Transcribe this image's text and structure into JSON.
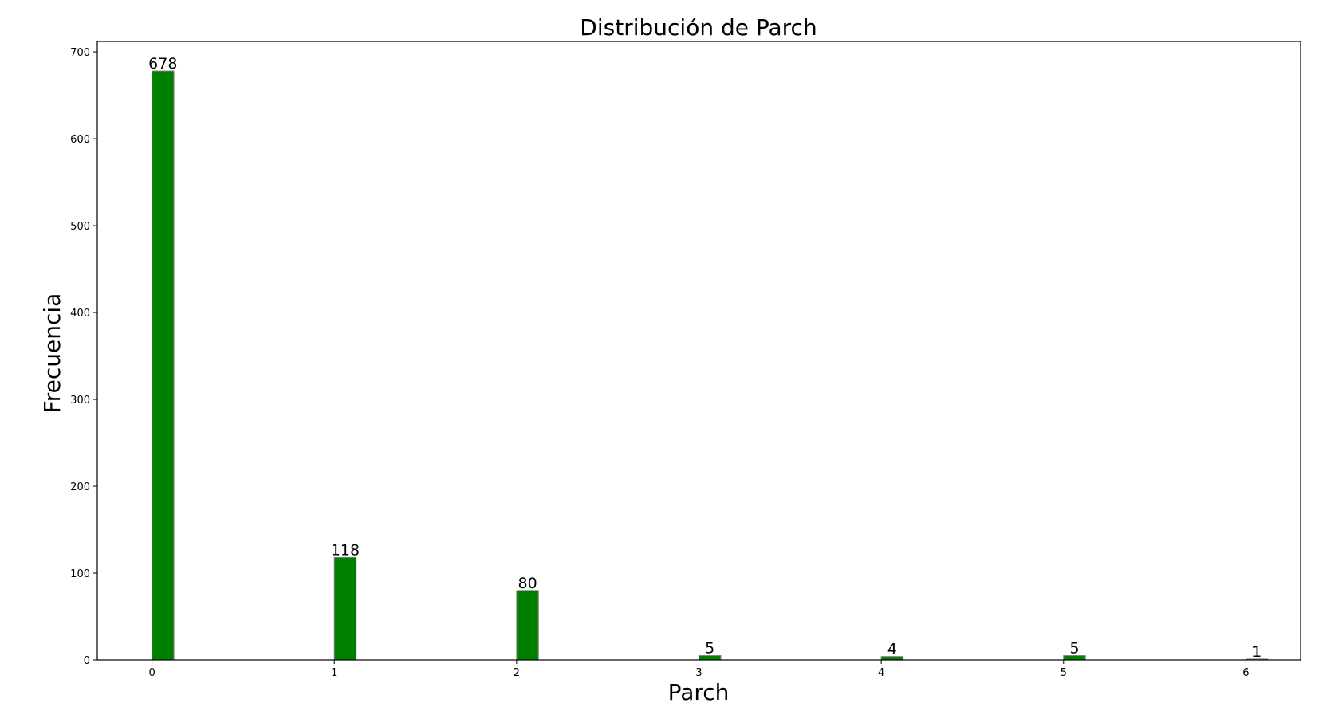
{
  "chart_data": {
    "type": "bar",
    "title": "Distribución de Parch",
    "xlabel": "Parch",
    "ylabel": "Frecuencia",
    "x": [
      0,
      1,
      2,
      3,
      4,
      5,
      6
    ],
    "values": [
      678,
      118,
      80,
      5,
      4,
      5,
      1
    ],
    "data_labels": [
      "678",
      "118",
      "80",
      "5",
      "4",
      "5",
      "1"
    ],
    "xticks": [
      0,
      1,
      2,
      3,
      4,
      5,
      6
    ],
    "yticks": [
      0,
      100,
      200,
      300,
      400,
      500,
      600,
      700
    ],
    "xlim": [
      -0.3,
      6.3
    ],
    "ylim": [
      0,
      712
    ],
    "bar_color": "#008000",
    "bar_edge_color": "#808080",
    "grid": false,
    "legend": "none"
  }
}
